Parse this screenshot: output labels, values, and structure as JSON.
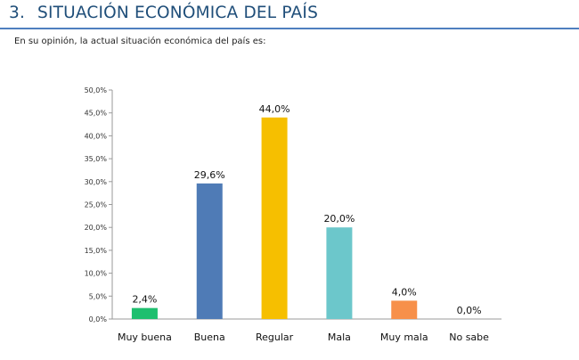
{
  "heading": {
    "number": "3.",
    "title": "SITUACIÓN ECONÓMICA DEL PAÍS"
  },
  "question": "En su opinión, la actual situación económica del país es:",
  "chart_data": {
    "type": "bar",
    "categories": [
      "Muy buena",
      "Buena",
      "Regular",
      "Mala",
      "Muy mala",
      "No sabe"
    ],
    "values": [
      2.4,
      29.6,
      44.0,
      20.0,
      4.0,
      0.0
    ],
    "value_labels": [
      "2,4%",
      "29,6%",
      "44,0%",
      "20,0%",
      "4,0%",
      "0,0%"
    ],
    "colors": [
      "#1fbf6f",
      "#4f7bb6",
      "#f6bf00",
      "#6cc7cb",
      "#f7904a",
      "#bbbbbb"
    ],
    "ylim": [
      0,
      50
    ],
    "yticks": [
      0,
      5,
      10,
      15,
      20,
      25,
      30,
      35,
      40,
      45,
      50
    ],
    "ytick_labels": [
      "0,0%",
      "5,0%",
      "10,0%",
      "15,0%",
      "20,0%",
      "25,0%",
      "30,0%",
      "35,0%",
      "40,0%",
      "45,0%",
      "50,0%"
    ],
    "grid": false,
    "legend": "none"
  }
}
